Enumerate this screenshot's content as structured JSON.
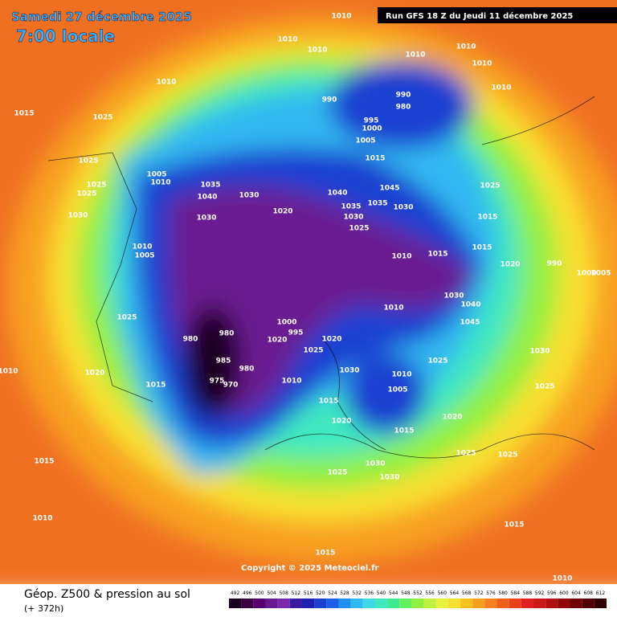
{
  "header": {
    "date": "Samedi 27 décembre 2025",
    "time": "7:00 locale",
    "run": "Run GFS 18 Z du Jeudi 11 décembre 2025"
  },
  "footer": {
    "title": "Géop. Z500 & pression au sol",
    "lead": "(+ 372h)",
    "copyright": "Copyright © 2025 Meteociel.fr"
  },
  "scale": {
    "values": [
      492,
      496,
      500,
      504,
      508,
      512,
      516,
      520,
      524,
      528,
      532,
      536,
      540,
      544,
      548,
      552,
      556,
      560,
      564,
      568,
      572,
      576,
      580,
      584,
      588,
      592,
      596,
      600,
      604,
      608,
      612
    ],
    "colors": [
      "#1a0020",
      "#3a0040",
      "#5a0070",
      "#6a1a90",
      "#7a2aa8",
      "#3a1aa0",
      "#2020b0",
      "#1a40d0",
      "#1a60e8",
      "#2090f0",
      "#30b8f0",
      "#40d8e8",
      "#40e8c0",
      "#40e890",
      "#60f060",
      "#90f040",
      "#c0f040",
      "#e8f040",
      "#f8e030",
      "#f8c020",
      "#f8a020",
      "#f88020",
      "#f06018",
      "#e84018",
      "#e02020",
      "#c81818",
      "#b01010",
      "#900808",
      "#700404",
      "#500202",
      "#300000"
    ]
  },
  "isobar_labels": [
    1010,
    1010,
    1010,
    1010,
    1010,
    1010,
    1010,
    1010,
    1015,
    1025,
    990,
    990,
    980,
    995,
    1000,
    1005,
    1015,
    1025,
    1015,
    1015,
    1020,
    1040,
    1045,
    1035,
    1030,
    1035,
    1030,
    1025,
    1010,
    1015,
    1020,
    1030,
    1035,
    1040,
    1030,
    1005,
    1010,
    1025,
    1025,
    1025,
    1030,
    1010,
    1005,
    1025,
    1020,
    1015,
    1010,
    1015,
    1010,
    1015,
    1015,
    1025,
    1025,
    1020,
    1015,
    1005,
    1010,
    1030,
    1015,
    1020,
    1025,
    1030,
    1030,
    1025,
    1030,
    1025,
    1045,
    1040,
    1030,
    1010,
    1020,
    1025,
    1000,
    995,
    1020,
    980,
    980,
    985,
    975,
    970,
    980,
    1010,
    990,
    1000,
    1005,
    1010
  ]
}
